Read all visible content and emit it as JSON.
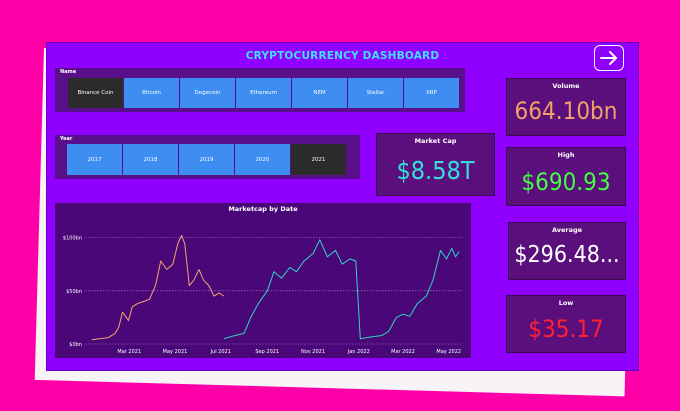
{
  "dashboard": {
    "title": "CRYPTOCURRENCY DASHBOARD"
  },
  "nav": {
    "icon": "arrow-right-icon"
  },
  "name_slicer": {
    "label": "Name",
    "items": [
      "Binance Coin",
      "Bitcoin",
      "Dogecoin",
      "Ethereum",
      "NEM",
      "Stellar",
      "XRP"
    ],
    "selected": "Binance Coin"
  },
  "year_slicer": {
    "label": "Year",
    "items": [
      "2017",
      "2018",
      "2019",
      "2020",
      "2021"
    ],
    "selected": "2021"
  },
  "kpis": {
    "market_cap": {
      "label": "Market Cap",
      "value": "$8.58T",
      "color": "#33e0d6"
    },
    "volume": {
      "label": "Volume",
      "value": "664.10bn",
      "color": "#f0a068"
    },
    "high": {
      "label": "High",
      "value": "$690.93",
      "color": "#40ff40"
    },
    "average": {
      "label": "Average",
      "value": "$296.48...",
      "color": "#ffffff"
    },
    "low": {
      "label": "Low",
      "value": "$35.17",
      "color": "#ff2030"
    }
  },
  "colors": {
    "accent_orange": "#f5a46a",
    "accent_teal": "#2fd6c6",
    "slicer_blue": "#3d8ef0"
  },
  "chart_data": {
    "type": "line",
    "title": "Marketcap by Date",
    "xlabel": "",
    "ylabel": "",
    "x_ticks": [
      "Mar 2021",
      "May 2021",
      "Jul 2021",
      "Sep 2021",
      "Nov 2021",
      "Jan 2022",
      "Mar 2022",
      "May 2022"
    ],
    "y_ticks": [
      "$0bn",
      "$50bn",
      "$100bn"
    ],
    "ylim": [
      0,
      110
    ],
    "grid": true,
    "series": [
      {
        "color": "#f5a46a",
        "points": [
          [
            "2021-01-10",
            4
          ],
          [
            "2021-01-20",
            5
          ],
          [
            "2021-02-01",
            6
          ],
          [
            "2021-02-10",
            10
          ],
          [
            "2021-02-15",
            16
          ],
          [
            "2021-02-20",
            30
          ],
          [
            "2021-02-28",
            22
          ],
          [
            "2021-03-05",
            35
          ],
          [
            "2021-03-12",
            38
          ],
          [
            "2021-03-20",
            40
          ],
          [
            "2021-03-28",
            42
          ],
          [
            "2021-04-05",
            55
          ],
          [
            "2021-04-12",
            78
          ],
          [
            "2021-04-20",
            70
          ],
          [
            "2021-04-28",
            75
          ],
          [
            "2021-05-05",
            95
          ],
          [
            "2021-05-10",
            102
          ],
          [
            "2021-05-14",
            94
          ],
          [
            "2021-05-20",
            55
          ],
          [
            "2021-05-26",
            60
          ],
          [
            "2021-06-02",
            70
          ],
          [
            "2021-06-08",
            60
          ],
          [
            "2021-06-15",
            55
          ],
          [
            "2021-06-22",
            45
          ],
          [
            "2021-06-29",
            48
          ],
          [
            "2021-07-05",
            45
          ]
        ]
      },
      {
        "color": "#2fd6c6",
        "points": [
          [
            "2021-07-05",
            5
          ],
          [
            "2021-07-20",
            8
          ],
          [
            "2021-08-01",
            10
          ],
          [
            "2021-08-10",
            25
          ],
          [
            "2021-08-20",
            38
          ],
          [
            "2021-09-01",
            50
          ],
          [
            "2021-09-10",
            68
          ],
          [
            "2021-09-20",
            62
          ],
          [
            "2021-10-01",
            72
          ],
          [
            "2021-10-10",
            68
          ],
          [
            "2021-10-20",
            78
          ],
          [
            "2021-11-01",
            85
          ],
          [
            "2021-11-10",
            98
          ],
          [
            "2021-11-20",
            82
          ],
          [
            "2021-12-01",
            88
          ],
          [
            "2021-12-10",
            75
          ],
          [
            "2021-12-20",
            80
          ],
          [
            "2021-12-28",
            78
          ],
          [
            "2022-01-03",
            5
          ],
          [
            "2022-01-20",
            7
          ],
          [
            "2022-02-01",
            8
          ],
          [
            "2022-02-10",
            12
          ],
          [
            "2022-02-20",
            25
          ],
          [
            "2022-03-01",
            28
          ],
          [
            "2022-03-10",
            26
          ],
          [
            "2022-03-20",
            38
          ],
          [
            "2022-04-01",
            45
          ],
          [
            "2022-04-10",
            60
          ],
          [
            "2022-04-20",
            88
          ],
          [
            "2022-04-28",
            80
          ],
          [
            "2022-05-05",
            90
          ],
          [
            "2022-05-10",
            82
          ],
          [
            "2022-05-15",
            87
          ]
        ]
      }
    ]
  }
}
